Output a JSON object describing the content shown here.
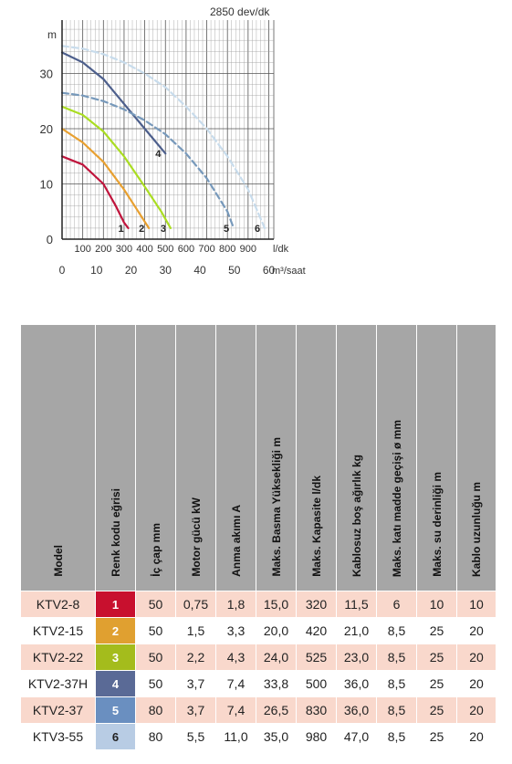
{
  "chart_data": {
    "type": "line",
    "title": "2850 dev/dk",
    "y_unit": "m",
    "x_unit": "l/dk",
    "x2_unit": "m³/saat",
    "xlim": [
      0,
      1000
    ],
    "ylim": [
      0,
      36
    ],
    "y_ticks": [
      0,
      10,
      20,
      30
    ],
    "x_ticks": [
      100,
      200,
      300,
      400,
      500,
      600,
      700,
      800,
      900
    ],
    "x2_ticks": [
      0,
      10,
      20,
      30,
      40,
      50,
      60
    ],
    "grid": true,
    "series": [
      {
        "name": "1",
        "color": "#c0143c",
        "dashed": false,
        "x": [
          0,
          100,
          200,
          260,
          300,
          320
        ],
        "y": [
          15,
          13.5,
          10,
          6,
          3,
          2
        ]
      },
      {
        "name": "2",
        "color": "#e8a030",
        "dashed": false,
        "x": [
          0,
          100,
          200,
          300,
          360,
          420
        ],
        "y": [
          20,
          17.5,
          14,
          9,
          5.5,
          2
        ]
      },
      {
        "name": "3",
        "color": "#aadd22",
        "dashed": false,
        "x": [
          0,
          100,
          200,
          300,
          400,
          480,
          525
        ],
        "y": [
          24,
          22.5,
          19.5,
          15,
          9.5,
          5,
          2
        ]
      },
      {
        "name": "4",
        "color": "#4d5f8c",
        "dashed": false,
        "x": [
          0,
          100,
          200,
          300,
          400,
          500
        ],
        "y": [
          33.8,
          32,
          29,
          24.5,
          20,
          15.5
        ]
      },
      {
        "name": "5",
        "color": "#7799bb",
        "dashed": true,
        "x": [
          0,
          100,
          200,
          300,
          400,
          500,
          600,
          700,
          800,
          830
        ],
        "y": [
          26.5,
          26,
          25,
          23.5,
          21.5,
          19,
          15.5,
          11,
          5,
          2
        ]
      },
      {
        "name": "6",
        "color": "#c8dcec",
        "dashed": true,
        "x": [
          0,
          100,
          200,
          300,
          400,
          500,
          600,
          700,
          800,
          900,
          980
        ],
        "y": [
          35,
          34.5,
          33.5,
          32,
          30,
          27.5,
          24,
          20,
          15,
          9,
          2
        ]
      }
    ]
  },
  "table": {
    "headers": [
      "Model",
      "Renk kodu eğrisi",
      "İç çap mm",
      "Motor gücü kW",
      "Anma akımı A",
      "Maks. Basma Yüksekliği m",
      "Maks. Kapasite l/dk",
      "Kablosuz boş ağırlık kg",
      "Maks. katı madde geçişi ø mm",
      "Maks. su derinliği m",
      "Kablo uzunluğu m"
    ],
    "rows": [
      {
        "model": "KTV2-8",
        "code": "1",
        "color": "#c8102e",
        "text_color": "#ffffff",
        "d": "50",
        "kw": "0,75",
        "a": "1,8",
        "h": "15,0",
        "q": "320",
        "kg": "11,5",
        "sol": "6",
        "depth": "10",
        "cable": "10"
      },
      {
        "model": "KTV2-15",
        "code": "2",
        "color": "#e0a030",
        "text_color": "#ffffff",
        "d": "50",
        "kw": "1,5",
        "a": "3,3",
        "h": "20,0",
        "q": "420",
        "kg": "21,0",
        "sol": "8,5",
        "depth": "25",
        "cable": "20"
      },
      {
        "model": "KTV2-22",
        "code": "3",
        "color": "#a4bc1c",
        "text_color": "#ffffff",
        "d": "50",
        "kw": "2,2",
        "a": "4,3",
        "h": "24,0",
        "q": "525",
        "kg": "23,0",
        "sol": "8,5",
        "depth": "25",
        "cable": "20"
      },
      {
        "model": "KTV2-37H",
        "code": "4",
        "color": "#5a6a96",
        "text_color": "#ffffff",
        "d": "50",
        "kw": "3,7",
        "a": "7,4",
        "h": "33,8",
        "q": "500",
        "kg": "36,0",
        "sol": "8,5",
        "depth": "25",
        "cable": "20"
      },
      {
        "model": "KTV2-37",
        "code": "5",
        "color": "#6a8fc0",
        "text_color": "#ffffff",
        "d": "80",
        "kw": "3,7",
        "a": "7,4",
        "h": "26,5",
        "q": "830",
        "kg": "36,0",
        "sol": "8,5",
        "depth": "25",
        "cable": "20"
      },
      {
        "model": "KTV3-55",
        "code": "6",
        "color": "#b8cce4",
        "text_color": "#222222",
        "d": "80",
        "kw": "5,5",
        "a": "11,0",
        "h": "35,0",
        "q": "980",
        "kg": "47,0",
        "sol": "8,5",
        "depth": "25",
        "cable": "20"
      }
    ]
  }
}
